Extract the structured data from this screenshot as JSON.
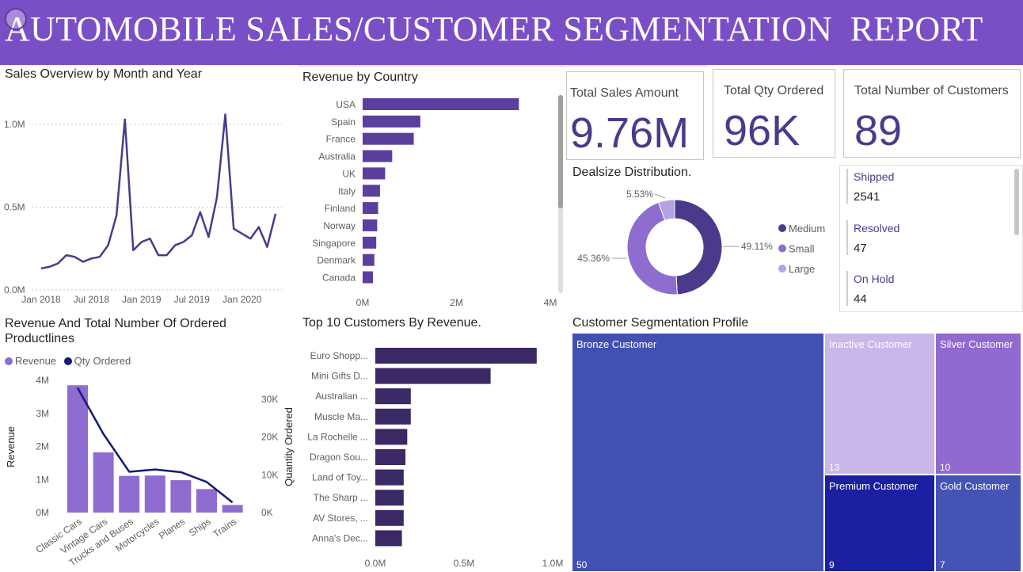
{
  "banner": {
    "title": "AUTOMOBILE SALES/CUSTOMER SEGMENTATION  REPORT"
  },
  "colors": {
    "banner": "#7a4fc6",
    "primary": "#5b3f9e",
    "line": "#4b3a8c",
    "darkline": "#14197a",
    "lightbar": "#8f6ccf"
  },
  "kpis": [
    {
      "label": "Total Sales Amount",
      "value": "9.76M"
    },
    {
      "label": "Total Qty Ordered",
      "value": "96K"
    },
    {
      "label": "Total Number of Customers",
      "value": "89"
    }
  ],
  "status": [
    {
      "label": "Shipped",
      "value": "2541"
    },
    {
      "label": "Resolved",
      "value": "47"
    },
    {
      "label": "On Hold",
      "value": "44"
    }
  ],
  "chart_data": [
    {
      "id": "sales-overview",
      "type": "line",
      "title": "Sales Overview by Month and Year",
      "x_ticks": [
        "Jan 2018",
        "Jul 2018",
        "Jan 2019",
        "Jul 2019",
        "Jan 2020"
      ],
      "y_ticks": [
        "0.0M",
        "0.5M",
        "1.0M"
      ],
      "ylim": [
        0,
        1.0
      ],
      "values": [
        0.13,
        0.14,
        0.16,
        0.21,
        0.2,
        0.17,
        0.19,
        0.2,
        0.27,
        0.45,
        1.03,
        0.24,
        0.29,
        0.31,
        0.21,
        0.21,
        0.27,
        0.29,
        0.33,
        0.47,
        0.32,
        0.56,
        1.06,
        0.37,
        0.34,
        0.31,
        0.38,
        0.26,
        0.46
      ]
    },
    {
      "id": "revenue-by-country",
      "type": "bar",
      "orientation": "horizontal",
      "title": "Revenue by Country",
      "categories": [
        "USA",
        "Spain",
        "France",
        "Australia",
        "UK",
        "Italy",
        "Finland",
        "Norway",
        "Singapore",
        "Denmark",
        "Canada"
      ],
      "values": [
        3.33,
        1.23,
        1.09,
        0.63,
        0.48,
        0.37,
        0.33,
        0.31,
        0.29,
        0.25,
        0.22
      ],
      "x_ticks": [
        "0M",
        "2M",
        "4M"
      ],
      "xlim": [
        0,
        4
      ]
    },
    {
      "id": "dealsize",
      "type": "pie",
      "title": "Dealsize Distribution.",
      "categories": [
        "Medium",
        "Small",
        "Large"
      ],
      "values": [
        49.11,
        45.36,
        5.53
      ],
      "labels": [
        "49.11%",
        "45.36%",
        "5.53%"
      ],
      "colors": [
        "#4b3a8c",
        "#8e6dcf",
        "#b6a2e3"
      ]
    },
    {
      "id": "productlines",
      "type": "bar",
      "title": "Revenue And Total Number Of Ordered Productlines",
      "legend": [
        "Revenue",
        "Qty Ordered"
      ],
      "categories": [
        "Classic Cars",
        "Vintage Cars",
        "Trucks and Buses",
        "Motorcycles",
        "Planes",
        "Ships",
        "Trains"
      ],
      "revenue": [
        3.85,
        1.82,
        1.11,
        1.12,
        0.98,
        0.71,
        0.23
      ],
      "qty": [
        33000,
        20800,
        10800,
        11400,
        10700,
        8100,
        2700
      ],
      "ylabel": "Revenue",
      "y2label": "Quantity Ordered",
      "y_ticks": [
        "0M",
        "1M",
        "2M",
        "3M",
        "4M"
      ],
      "y2_ticks": [
        "0K",
        "10K",
        "20K",
        "30K"
      ],
      "ylim": [
        0,
        4
      ],
      "y2lim": [
        0,
        35000
      ]
    },
    {
      "id": "top-customers",
      "type": "bar",
      "orientation": "horizontal",
      "title": "Top 10 Customers By Revenue.",
      "categories": [
        "Euro Shopp...",
        "Mini Gifts D...",
        "Australian ...",
        "Muscle Ma...",
        "La Rochelle ...",
        "Dragon Sou...",
        "Land of Toy...",
        "The Sharp ...",
        "AV Stores, ...",
        "Anna's Dec..."
      ],
      "values": [
        0.91,
        0.65,
        0.2,
        0.2,
        0.18,
        0.17,
        0.16,
        0.16,
        0.16,
        0.15
      ],
      "x_ticks": [
        "0.0M",
        "0.5M",
        "1.0M"
      ],
      "xlim": [
        0,
        1.0
      ]
    },
    {
      "id": "segmentation",
      "type": "treemap",
      "title": "Customer Segmentation Profile",
      "categories": [
        "Bronze Customer",
        "Inactive Customer",
        "Silver Customer",
        "Premium Customer",
        "Gold Customer"
      ],
      "values": [
        50,
        13,
        10,
        9,
        7
      ],
      "colors": [
        "#4350b3",
        "#c8b7e8",
        "#9169d0",
        "#1a20a0",
        "#4453b5"
      ]
    }
  ]
}
